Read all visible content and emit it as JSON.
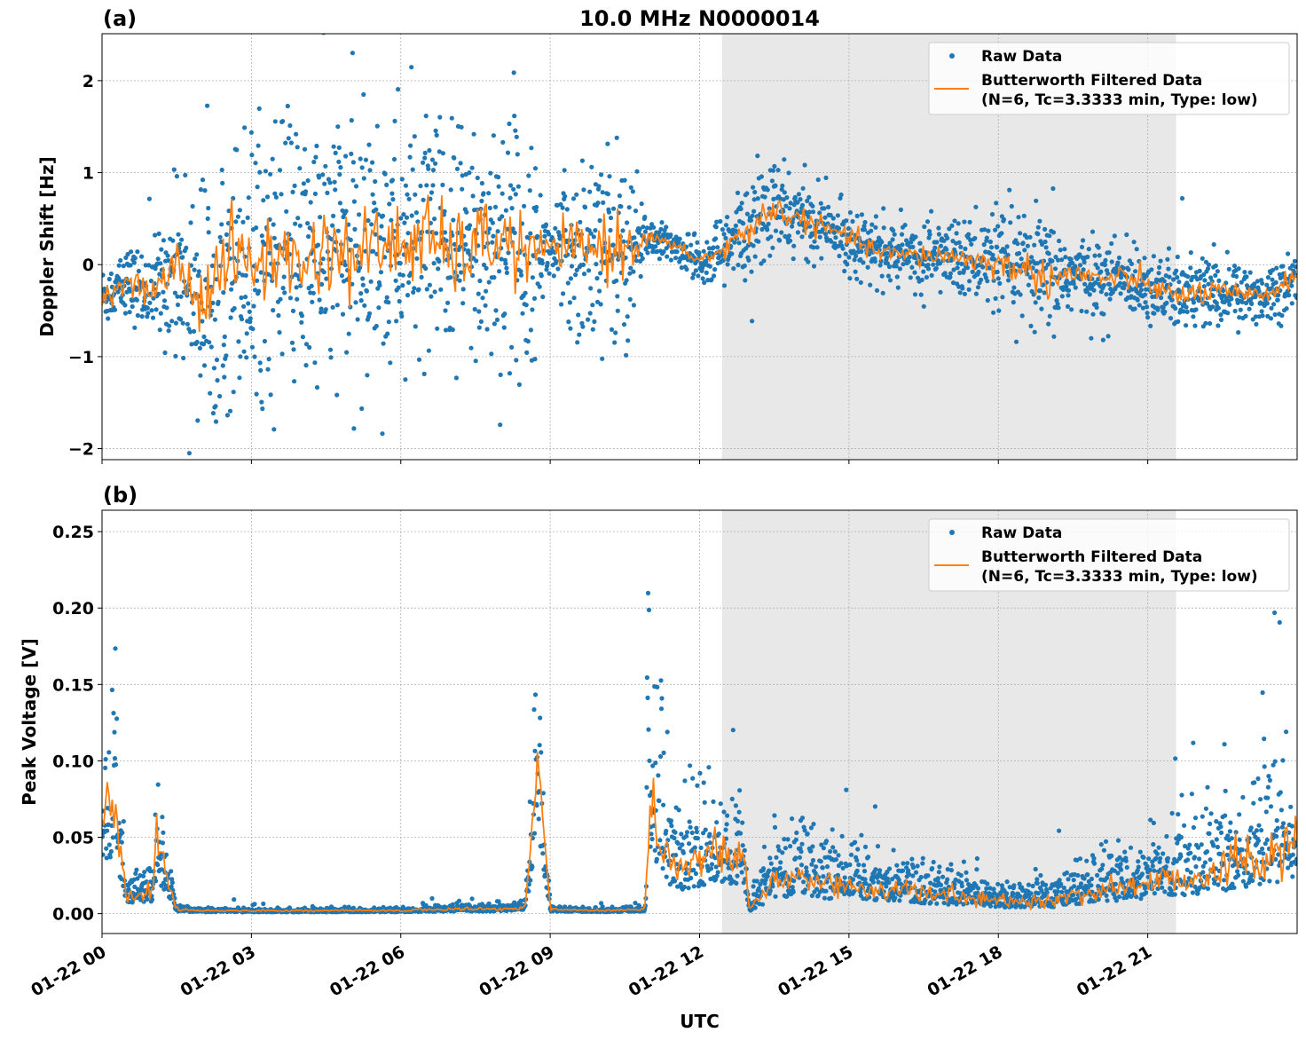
{
  "chart_data": [
    {
      "type": "scatter",
      "panel_label": "(a)",
      "title": "10.0 MHz N0000014",
      "xlabel": "",
      "ylabel": "Doppler Shift [Hz]",
      "ylim": [
        -2.12,
        2.51
      ],
      "yticks": [
        -2,
        -1,
        0,
        1,
        2
      ],
      "ytick_labels": [
        "−2",
        "−1",
        "0",
        "1",
        "2"
      ],
      "xlim_hours": [
        0,
        24
      ],
      "grid": true,
      "legend_position": "top-right",
      "legend": [
        "Raw Data",
        "Butterworth Filtered Data",
        "(N=6, Tc=3.3333 min, Type: low)"
      ],
      "shaded_region_hours": [
        12.45,
        21.57
      ],
      "series": [
        {
          "name": "Raw Data",
          "kind": "points",
          "color": "#1f77b4"
        },
        {
          "name": "Butterworth Filtered Data (N=6, Tc=3.3333 min, Type: low)",
          "kind": "line",
          "color": "#ff7f0e"
        }
      ],
      "hours": [
        0,
        0.5,
        1,
        1.5,
        2,
        2.5,
        3,
        3.5,
        4,
        4.5,
        5,
        5.5,
        6,
        6.5,
        7,
        7.5,
        8,
        8.5,
        9,
        9.5,
        10,
        10.5,
        11,
        11.5,
        12,
        12.5,
        13,
        13.5,
        14,
        14.5,
        15,
        15.5,
        16,
        16.5,
        17,
        17.5,
        18,
        18.5,
        19,
        19.5,
        20,
        20.5,
        21,
        21.5,
        22,
        22.5,
        23,
        23.5,
        24
      ],
      "filtered": [
        -0.35,
        -0.2,
        -0.3,
        0.0,
        -0.4,
        0.1,
        0.0,
        0.1,
        0.0,
        0.2,
        0.1,
        0.2,
        0.2,
        0.3,
        0.1,
        0.2,
        0.3,
        0.1,
        0.2,
        0.15,
        0.2,
        0.2,
        0.3,
        0.2,
        0.05,
        0.15,
        0.4,
        0.6,
        0.5,
        0.4,
        0.3,
        0.15,
        0.1,
        0.1,
        0.1,
        0.05,
        0.0,
        -0.05,
        -0.15,
        -0.1,
        -0.15,
        -0.15,
        -0.2,
        -0.35,
        -0.3,
        -0.3,
        -0.35,
        -0.3,
        -0.1
      ],
      "raw_spread": [
        0.3,
        0.35,
        0.4,
        0.8,
        1.2,
        1.3,
        1.3,
        1.3,
        1.3,
        1.3,
        1.3,
        1.3,
        1.3,
        1.3,
        1.3,
        1.3,
        1.3,
        1.2,
        0.2,
        1.0,
        1.0,
        1.0,
        0.2,
        0.15,
        0.2,
        0.4,
        0.5,
        0.5,
        0.35,
        0.3,
        0.3,
        0.3,
        0.3,
        0.35,
        0.35,
        0.4,
        0.45,
        0.5,
        0.6,
        0.4,
        0.35,
        0.35,
        0.35,
        0.35,
        0.4,
        0.35,
        0.3,
        0.3,
        0.3
      ]
    },
    {
      "type": "scatter",
      "panel_label": "(b)",
      "xlabel": "UTC",
      "ylabel": "Peak Voltage [V]",
      "ylim": [
        -0.013,
        0.264
      ],
      "yticks": [
        0,
        0.05,
        0.1,
        0.15,
        0.2,
        0.25
      ],
      "ytick_labels": [
        "0.00",
        "0.05",
        "0.10",
        "0.15",
        "0.20",
        "0.25"
      ],
      "xlim_hours": [
        0,
        24
      ],
      "xticks_hours": [
        0,
        3,
        6,
        9,
        12,
        15,
        18,
        21
      ],
      "xtick_labels": [
        "01-22 00",
        "01-22 03",
        "01-22 06",
        "01-22 09",
        "01-22 12",
        "01-22 15",
        "01-22 18",
        "01-22 21"
      ],
      "grid": true,
      "legend_position": "top-right",
      "legend": [
        "Raw Data",
        "Butterworth Filtered Data",
        "(N=6, Tc=3.3333 min, Type: low)"
      ],
      "shaded_region_hours": [
        12.45,
        21.57
      ],
      "series": [
        {
          "name": "Raw Data",
          "kind": "points",
          "color": "#1f77b4"
        },
        {
          "name": "Butterworth Filtered Data (N=6, Tc=3.3333 min, Type: low)",
          "kind": "line",
          "color": "#ff7f0e"
        }
      ],
      "hours": [
        0,
        0.25,
        0.5,
        1,
        1.1,
        1.5,
        2,
        3,
        4,
        5,
        6,
        7,
        8,
        8.5,
        8.75,
        9,
        10,
        10.9,
        11,
        11.5,
        12,
        12.5,
        12.9,
        13,
        13.5,
        14,
        14.5,
        15,
        16,
        17,
        18,
        19,
        20,
        21,
        22,
        23,
        24
      ],
      "filtered": [
        0.06,
        0.07,
        0.012,
        0.015,
        0.045,
        0.003,
        0.002,
        0.002,
        0.002,
        0.002,
        0.002,
        0.003,
        0.003,
        0.004,
        0.1,
        0.003,
        0.002,
        0.003,
        0.07,
        0.03,
        0.035,
        0.04,
        0.035,
        0.003,
        0.02,
        0.025,
        0.02,
        0.018,
        0.015,
        0.012,
        0.008,
        0.008,
        0.015,
        0.02,
        0.025,
        0.035,
        0.045
      ],
      "raw_spread": [
        0.05,
        0.07,
        0.02,
        0.02,
        0.05,
        0.004,
        0.002,
        0.002,
        0.002,
        0.002,
        0.002,
        0.004,
        0.004,
        0.005,
        0.07,
        0.003,
        0.002,
        0.003,
        0.1,
        0.05,
        0.05,
        0.05,
        0.04,
        0.004,
        0.04,
        0.04,
        0.035,
        0.03,
        0.025,
        0.02,
        0.012,
        0.015,
        0.025,
        0.035,
        0.04,
        0.06,
        0.07
      ]
    }
  ]
}
